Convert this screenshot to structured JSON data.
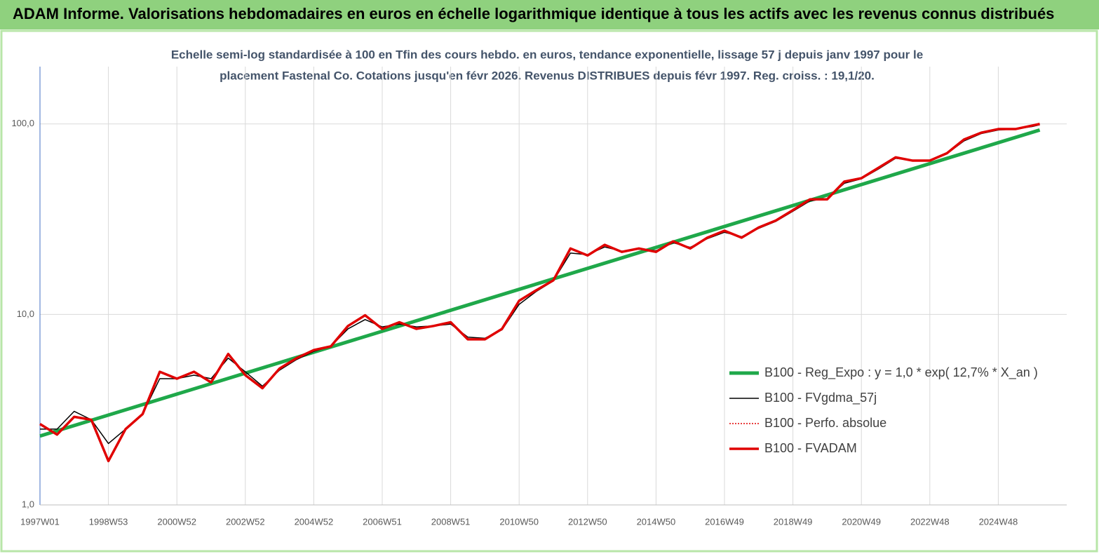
{
  "chart_data": {
    "type": "line",
    "title": "ADAM Informe. Valorisations hebdomadaires en euros en échelle logarithmique identique à tous les actifs avec les revenus connus distribués",
    "subtitle": [
      "Echelle semi-log standardisée à 100 en Tfin des cours hebdo. en euros, tendance exponentielle, lissage 57 j depuis janv 1997 pour le",
      "placement Fastenal Co. Cotations jusqu'en févr 2026. Revenus DISTRIBUES depuis févr 1997. Reg. croiss. : 19,1/20."
    ],
    "log_y": true,
    "grid": true,
    "ylim": [
      1,
      200
    ],
    "yticks": [
      {
        "value": 1,
        "label": "1,0"
      },
      {
        "value": 10,
        "label": "10,0"
      },
      {
        "value": 100,
        "label": "100,0"
      }
    ],
    "xlim": [
      0,
      1560
    ],
    "xticks": [
      {
        "value": 0,
        "label": "1997W01"
      },
      {
        "value": 104,
        "label": "1998W53"
      },
      {
        "value": 208,
        "label": "2000W52"
      },
      {
        "value": 312,
        "label": "2002W52"
      },
      {
        "value": 416,
        "label": "2004W52"
      },
      {
        "value": 520,
        "label": "2006W51"
      },
      {
        "value": 624,
        "label": "2008W51"
      },
      {
        "value": 728,
        "label": "2010W50"
      },
      {
        "value": 832,
        "label": "2012W50"
      },
      {
        "value": 936,
        "label": "2014W50"
      },
      {
        "value": 1040,
        "label": "2016W49"
      },
      {
        "value": 1144,
        "label": "2018W49"
      },
      {
        "value": 1248,
        "label": "2020W49"
      },
      {
        "value": 1352,
        "label": "2022W48"
      },
      {
        "value": 1456,
        "label": "2024W48"
      }
    ],
    "x": [
      0,
      26,
      52,
      78,
      104,
      130,
      156,
      182,
      208,
      234,
      260,
      286,
      312,
      338,
      364,
      390,
      416,
      442,
      468,
      494,
      520,
      546,
      572,
      598,
      624,
      650,
      676,
      702,
      728,
      754,
      780,
      806,
      832,
      858,
      884,
      910,
      936,
      962,
      988,
      1014,
      1040,
      1066,
      1092,
      1118,
      1144,
      1170,
      1196,
      1222,
      1248,
      1274,
      1300,
      1326,
      1352,
      1378,
      1404,
      1430,
      1456,
      1482,
      1508,
      1519
    ],
    "series": [
      {
        "name": "B100 - Reg_Expo : y = 1,0 * exp( 12,7% *  X_an )",
        "color": "#1fa84a",
        "width": 5,
        "x": [
          0,
          1519
        ],
        "values": [
          2.3,
          93
        ]
      },
      {
        "name": "B100 - FVgdma_57j",
        "color": "#000000",
        "width": 1.5,
        "values": [
          2.5,
          2.5,
          3.1,
          2.8,
          2.1,
          2.5,
          3.0,
          4.6,
          4.6,
          4.8,
          4.6,
          5.9,
          5.0,
          4.2,
          5.1,
          5.8,
          6.4,
          6.8,
          8.4,
          9.4,
          8.6,
          8.9,
          8.6,
          8.7,
          8.9,
          7.6,
          7.5,
          8.3,
          11.3,
          13.2,
          15.0,
          21.0,
          20.6,
          22.6,
          21.5,
          22.0,
          21.6,
          23.8,
          22.5,
          25.0,
          27.0,
          25.6,
          28.3,
          30.8,
          34.8,
          39.5,
          40.5,
          48.8,
          51.5,
          58.0,
          66.0,
          64.5,
          64.5,
          69.8,
          81.5,
          89.0,
          93.0,
          94.0,
          97.0,
          99.0
        ]
      },
      {
        "name": "B100 - Perfo. absolue",
        "color": "#e00000",
        "width": 1.5,
        "dashed": true,
        "values": [
          2.66,
          2.34,
          2.9,
          2.8,
          1.7,
          2.5,
          3.0,
          5.0,
          4.6,
          5.0,
          4.4,
          6.2,
          4.8,
          4.1,
          5.2,
          5.9,
          6.5,
          6.8,
          8.7,
          9.9,
          8.4,
          9.1,
          8.4,
          8.7,
          9.1,
          7.4,
          7.4,
          8.4,
          11.8,
          13.4,
          15.1,
          22.2,
          20.4,
          23.2,
          21.3,
          22.2,
          21.3,
          24.2,
          22.2,
          25.3,
          27.5,
          25.3,
          28.6,
          31.1,
          35.3,
          40.2,
          40.2,
          49.8,
          51.9,
          58.9,
          66.8,
          64.2,
          64.2,
          70.2,
          82.9,
          90.0,
          94.0,
          94.0,
          98.2,
          100
        ]
      },
      {
        "name": "B100 - FVADAM",
        "color": "#e00000",
        "width": 3.5,
        "values": [
          2.66,
          2.34,
          2.9,
          2.8,
          1.7,
          2.5,
          3.0,
          5.0,
          4.6,
          5.0,
          4.4,
          6.2,
          4.8,
          4.1,
          5.2,
          5.9,
          6.5,
          6.8,
          8.7,
          9.9,
          8.4,
          9.1,
          8.4,
          8.7,
          9.1,
          7.4,
          7.4,
          8.4,
          11.8,
          13.4,
          15.1,
          22.2,
          20.4,
          23.2,
          21.3,
          22.2,
          21.3,
          24.2,
          22.2,
          25.3,
          27.5,
          25.3,
          28.6,
          31.1,
          35.3,
          40.2,
          40.2,
          49.8,
          51.9,
          58.9,
          66.8,
          64.2,
          64.2,
          70.2,
          82.9,
          90.0,
          94.0,
          94.0,
          98.2,
          100
        ]
      }
    ]
  }
}
